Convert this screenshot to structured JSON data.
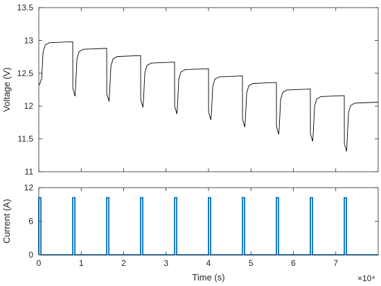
{
  "chart_data": [
    {
      "type": "line",
      "ylabel": "Voltage (V)",
      "xlabel": "",
      "xlim": [
        0,
        80000
      ],
      "ylim": [
        11,
        13.5
      ],
      "yticks": [
        "11",
        "11.5",
        "12",
        "12.5",
        "13",
        "13.5"
      ],
      "grid": false,
      "series": [
        {
          "color": "#000000",
          "pulses": [
            {
              "start": 0,
              "end": 500,
              "rest_before": 12.31,
              "rest_after": 12.35,
              "charge_peak": 12.98
            },
            {
              "start": 8000,
              "end": 8500,
              "rest_before": 12.95,
              "rest_after": 12.27,
              "charge_peak": 12.88
            },
            {
              "start": 16000,
              "end": 16500,
              "rest_before": 12.85,
              "rest_after": 12.19,
              "charge_peak": 12.77
            },
            {
              "start": 24000,
              "end": 24500,
              "rest_before": 12.75,
              "rest_after": 12.1,
              "charge_peak": 12.67
            },
            {
              "start": 32000,
              "end": 32500,
              "rest_before": 12.65,
              "rest_after": 12.0,
              "charge_peak": 12.57
            },
            {
              "start": 40000,
              "end": 40500,
              "rest_before": 12.55,
              "rest_after": 11.91,
              "charge_peak": 12.46
            },
            {
              "start": 48000,
              "end": 48500,
              "rest_before": 12.44,
              "rest_after": 11.8,
              "charge_peak": 12.36
            },
            {
              "start": 56000,
              "end": 56500,
              "rest_before": 12.34,
              "rest_after": 11.69,
              "charge_peak": 12.26
            },
            {
              "start": 64000,
              "end": 64500,
              "rest_before": 12.24,
              "rest_after": 11.58,
              "charge_peak": 12.16
            },
            {
              "start": 72000,
              "end": 72500,
              "rest_before": 12.14,
              "rest_after": 11.43,
              "charge_peak": 12.06
            }
          ]
        }
      ]
    },
    {
      "type": "line",
      "ylabel": "Current (A)",
      "xlabel": "Time (s)",
      "xlim": [
        0,
        80000
      ],
      "ylim": [
        0,
        12
      ],
      "yticks": [
        "0",
        "6",
        "12"
      ],
      "xticks": [
        "0",
        "1",
        "2",
        "3",
        "4",
        "5",
        "6",
        "7"
      ],
      "x_multiplier": "×10⁴",
      "grid": false,
      "series": [
        {
          "color": "#0072bd",
          "pulses": [
            {
              "start": 0,
              "end": 500,
              "value": 10.2
            },
            {
              "start": 8000,
              "end": 8500,
              "value": 10.2
            },
            {
              "start": 16000,
              "end": 16500,
              "value": 10.2
            },
            {
              "start": 24000,
              "end": 24500,
              "value": 10.2
            },
            {
              "start": 32000,
              "end": 32500,
              "value": 10.2
            },
            {
              "start": 40000,
              "end": 40500,
              "value": 10.2
            },
            {
              "start": 48000,
              "end": 48500,
              "value": 10.2
            },
            {
              "start": 56000,
              "end": 56500,
              "value": 10.2
            },
            {
              "start": 64000,
              "end": 64500,
              "value": 10.2
            },
            {
              "start": 72000,
              "end": 72500,
              "value": 10.2
            }
          ]
        }
      ]
    }
  ]
}
